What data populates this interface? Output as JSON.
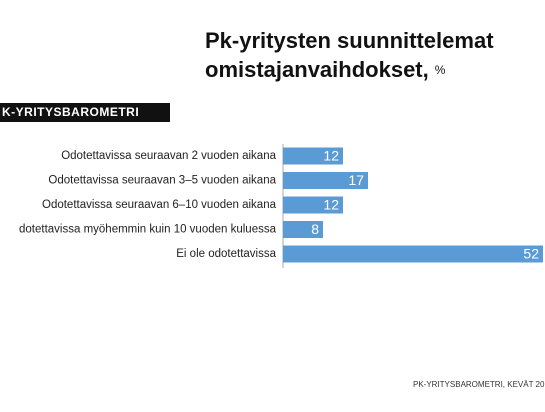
{
  "chart_data": {
    "type": "bar",
    "orientation": "horizontal",
    "title": [
      "Pk-yritysten suunnittelemat",
      "omistajanvaihdokset,"
    ],
    "unit": "%",
    "banner": "K-YRITYSBAROMETRI",
    "categories": [
      "Odotettavissa seuraavan 2 vuoden aikana",
      "Odotettavissa seuraavan 3–5 vuoden aikana",
      "Odotettavissa seuraavan 6–10 vuoden aikana",
      "dotettavissa myöhemmin kuin 10 vuoden kuluessa",
      "Ei ole odotettavissa"
    ],
    "values": [
      12,
      17,
      12,
      8,
      52
    ],
    "color": "#5b9bd5",
    "source": "PK-YRITYSBAROMETRI, KEVÄT 20"
  }
}
